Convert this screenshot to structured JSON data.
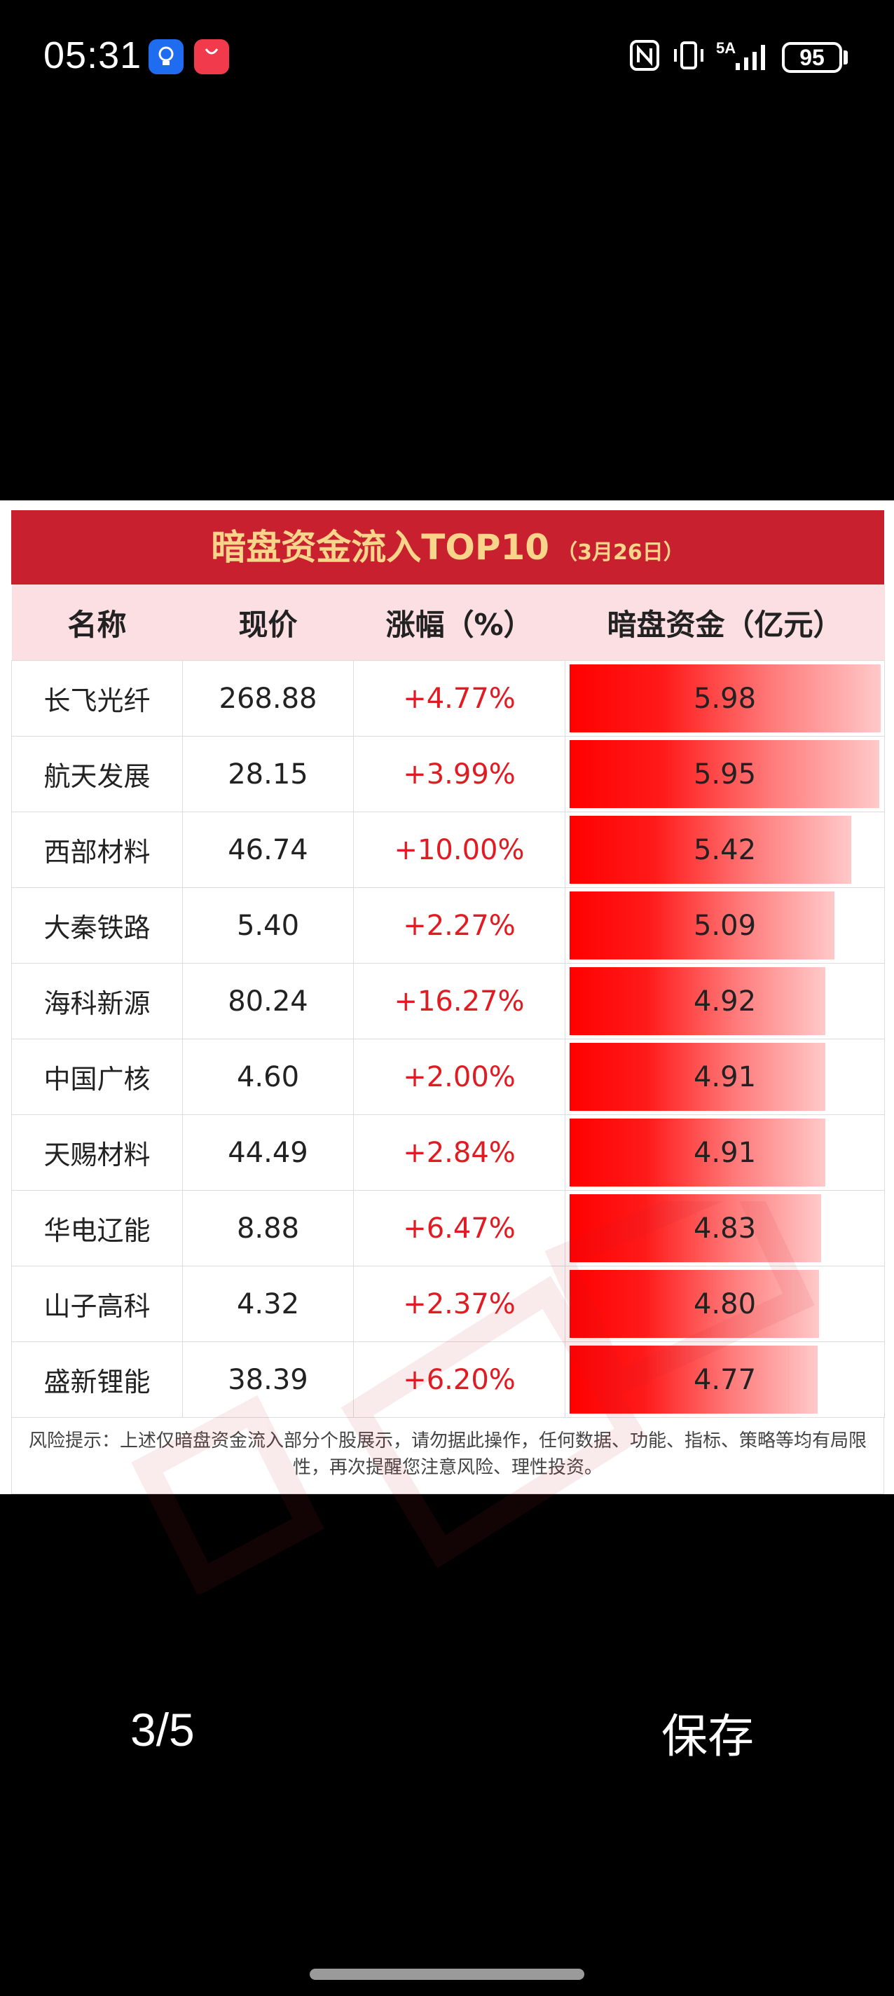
{
  "status_bar": {
    "time": "05:31",
    "app_icon_small_text": "App Gallery",
    "network": "5A",
    "battery": "95"
  },
  "card": {
    "title": "暗盘资金流入TOP10",
    "date": "（3月26日）",
    "headers": [
      "名称",
      "现价",
      "涨幅（%）",
      "暗盘资金（亿元）"
    ],
    "max_flow": 5.98,
    "rows": [
      {
        "name": "长飞光纤",
        "price": "268.88",
        "change": "+4.77%",
        "flow": "5.98"
      },
      {
        "name": "航天发展",
        "price": "28.15",
        "change": "+3.99%",
        "flow": "5.95"
      },
      {
        "name": "西部材料",
        "price": "46.74",
        "change": "+10.00%",
        "flow": "5.42"
      },
      {
        "name": "大秦铁路",
        "price": "5.40",
        "change": "+2.27%",
        "flow": "5.09"
      },
      {
        "name": "海科新源",
        "price": "80.24",
        "change": "+16.27%",
        "flow": "4.92"
      },
      {
        "name": "中国广核",
        "price": "4.60",
        "change": "+2.00%",
        "flow": "4.91"
      },
      {
        "name": "天赐材料",
        "price": "44.49",
        "change": "+2.84%",
        "flow": "4.91"
      },
      {
        "name": "华电辽能",
        "price": "8.88",
        "change": "+6.47%",
        "flow": "4.83"
      },
      {
        "name": "山子高科",
        "price": "4.32",
        "change": "+2.37%",
        "flow": "4.80"
      },
      {
        "name": "盛新锂能",
        "price": "38.39",
        "change": "+6.20%",
        "flow": "4.77"
      }
    ],
    "note": "风险提示：上述仅暗盘资金流入部分个股展示，请勿据此操作，任何数据、功能、指标、策略等均有局限性，再次提醒您注意风险、理性投资。",
    "watermark": "同花顺",
    "accent_color": "#c9202f",
    "header_bg": "#fbdfe3",
    "title_color": "#f8d58a",
    "change_color": "#e21b23"
  },
  "viewer": {
    "page_counter": "3/5",
    "save_label": "保存"
  }
}
